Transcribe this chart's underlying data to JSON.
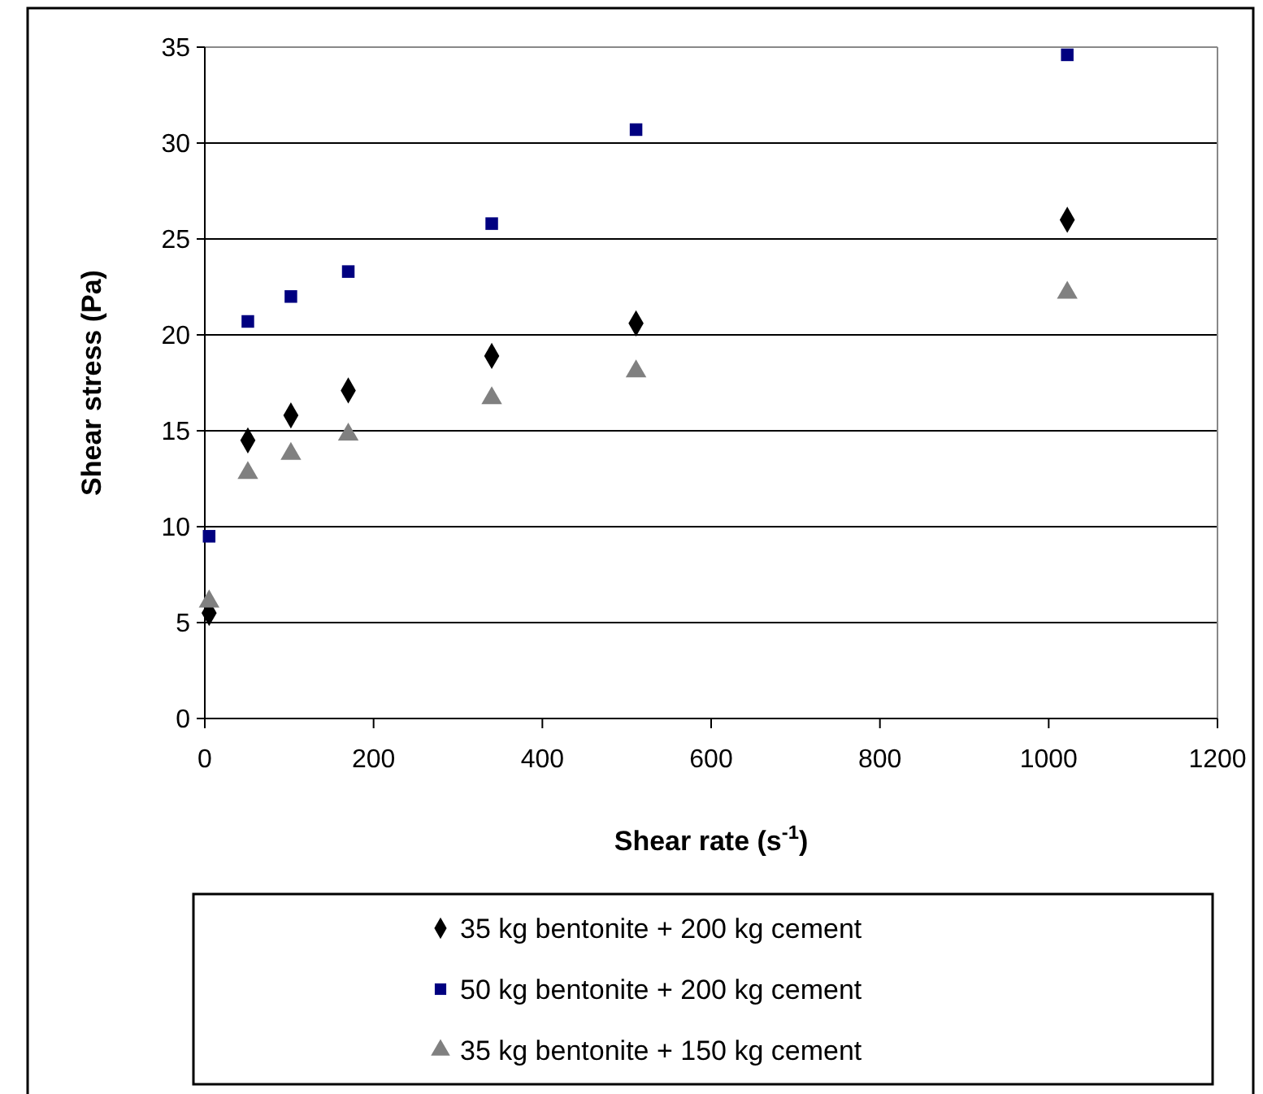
{
  "chart_data": {
    "type": "scatter",
    "xlabel": "Shear rate (s$^{-1}$)",
    "ylabel": "Shear stress (Pa)",
    "xlim": [
      0,
      1200
    ],
    "xticks": [
      0,
      200,
      400,
      600,
      800,
      1000,
      1200
    ],
    "ylim": [
      0,
      35
    ],
    "yticks": [
      0,
      5,
      10,
      15,
      20,
      25,
      30,
      35
    ],
    "grid": "y",
    "legend": "bottom",
    "series": [
      {
        "name": "35 kg bentonite + 200 kg cement",
        "color": "#000000",
        "marker": "diamond",
        "x": [
          5.1,
          51,
          102,
          170,
          340,
          511,
          1022
        ],
        "values": [
          5.5,
          14.5,
          15.8,
          17.1,
          18.9,
          20.6,
          26.0
        ]
      },
      {
        "name": "50 kg bentonite + 200 kg cement",
        "color": "#000080",
        "marker": "square",
        "x": [
          5.1,
          51,
          102,
          170,
          340,
          511,
          1022
        ],
        "values": [
          9.5,
          20.7,
          22.0,
          23.3,
          25.8,
          30.7,
          34.6
        ]
      },
      {
        "name": "35 kg bentonite + 150 kg cement",
        "color": "#808080",
        "marker": "triangle",
        "x": [
          5.1,
          51,
          102,
          170,
          340,
          511,
          1022
        ],
        "values": [
          6.1,
          12.8,
          13.8,
          14.8,
          16.7,
          18.1,
          22.2
        ]
      }
    ]
  }
}
